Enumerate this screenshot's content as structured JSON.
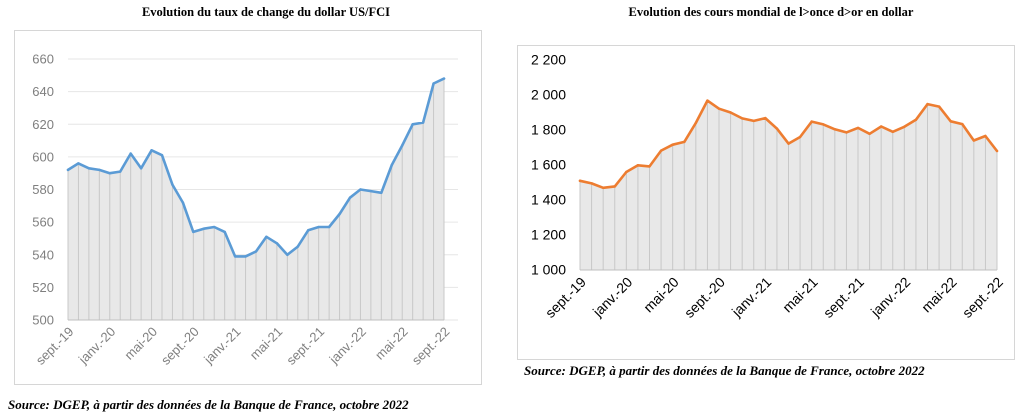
{
  "chart_data": [
    {
      "type": "area",
      "title": "Evolution du taux de change du dollar US/FCI",
      "source": "Source: DGEP, à partir des données de la Banque de France, octobre 2022",
      "ylim": [
        500,
        660
      ],
      "yticks": [
        "500",
        "520",
        "540",
        "560",
        "580",
        "600",
        "620",
        "640",
        "660"
      ],
      "grid": true,
      "legend": "none",
      "color": "#5b9bd5",
      "fill_color": "#e8e8e8",
      "x_tick_labels": [
        "sept.-19",
        "janv.-20",
        "mai-20",
        "sept.-20",
        "janv.-21",
        "mai-21",
        "sept.-21",
        "janv.-22",
        "mai-22",
        "sept.-22"
      ],
      "x": [
        "sept.-19",
        "oct.-19",
        "nov.-19",
        "déc.-19",
        "janv.-20",
        "févr.-20",
        "mars-20",
        "avr.-20",
        "mai-20",
        "juin-20",
        "juil.-20",
        "août-20",
        "sept.-20",
        "oct.-20",
        "nov.-20",
        "déc.-20",
        "janv.-21",
        "févr.-21",
        "mars-21",
        "avr.-21",
        "mai-21",
        "juin-21",
        "juil.-21",
        "août-21",
        "sept.-21",
        "oct.-21",
        "nov.-21",
        "déc.-21",
        "janv.-22",
        "févr.-22",
        "mars-22",
        "avr.-22",
        "mai-22",
        "juin-22",
        "juil.-22",
        "août-22",
        "sept.-22"
      ],
      "values": [
        592,
        596,
        593,
        592,
        590,
        591,
        602,
        593,
        604,
        601,
        583,
        572,
        554,
        556,
        557,
        554,
        539,
        539,
        542,
        551,
        547,
        540,
        545,
        555,
        557,
        557,
        565,
        575,
        580,
        579,
        578,
        595,
        607,
        620,
        621,
        645,
        648
      ]
    },
    {
      "type": "area",
      "title": "Evolution des cours mondial de l>once d>or en dollar",
      "source": "Source: DGEP, à partir des données de la Banque de France, octobre 2022",
      "ylim": [
        1000,
        2200
      ],
      "yticks": [
        "1 000",
        "1 200",
        "1 400",
        "1 600",
        "1 800",
        "2 000",
        "2 200"
      ],
      "grid": false,
      "legend": "none",
      "color": "#ed7d31",
      "fill_color": "#e8e8e8",
      "x_tick_labels": [
        "sept.-19",
        "janv.-20",
        "mai-20",
        "sept.-20",
        "janv.-21",
        "mai-21",
        "sept.-21",
        "janv.-22",
        "mai-22",
        "sept.-22"
      ],
      "x": [
        "sept.-19",
        "oct.-19",
        "nov.-19",
        "déc.-19",
        "janv.-20",
        "févr.-20",
        "mars-20",
        "avr.-20",
        "mai-20",
        "juin-20",
        "juil.-20",
        "août-20",
        "sept.-20",
        "oct.-20",
        "nov.-20",
        "déc.-20",
        "janv.-21",
        "févr.-21",
        "mars-21",
        "avr.-21",
        "mai-21",
        "juin-21",
        "juil.-21",
        "août-21",
        "sept.-21",
        "oct.-21",
        "nov.-21",
        "déc.-21",
        "janv.-22",
        "févr.-22",
        "mars-22",
        "avr.-22",
        "mai-22",
        "juin-22",
        "juil.-22",
        "août-22",
        "sept.-22"
      ],
      "values": [
        1510,
        1495,
        1470,
        1478,
        1560,
        1598,
        1592,
        1682,
        1716,
        1732,
        1840,
        1968,
        1922,
        1900,
        1866,
        1852,
        1868,
        1808,
        1722,
        1760,
        1848,
        1832,
        1804,
        1786,
        1812,
        1778,
        1820,
        1790,
        1818,
        1858,
        1948,
        1934,
        1850,
        1834,
        1740,
        1766,
        1680
      ]
    }
  ]
}
